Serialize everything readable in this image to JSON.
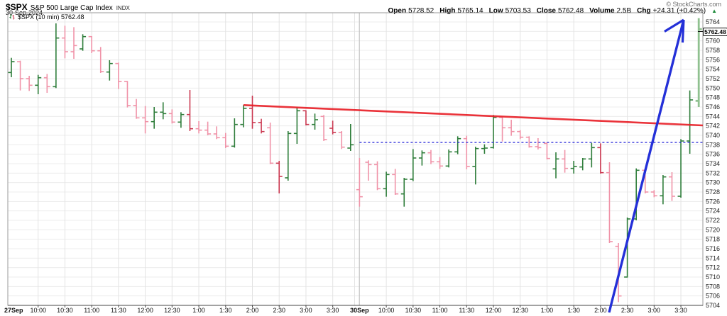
{
  "header": {
    "symbol": "$SPX",
    "index_name": "S&P 500 Large Cap Index",
    "exchange": "INDX",
    "date": "30-Sep-2024",
    "credit": "© StockCharts.com",
    "quote": [
      [
        "Open",
        "5728.52"
      ],
      [
        "High",
        "5765.14"
      ],
      [
        "Low",
        "5703.53"
      ],
      [
        "Close",
        "5762.48"
      ],
      [
        "Volume",
        "2.5B"
      ],
      [
        "Chg",
        "+24.31 (+0.42%)"
      ]
    ],
    "chg_arrow": "▲"
  },
  "chart_label": {
    "text": "$SPX (10 min) 5762.48"
  },
  "price_tag": "5762.48",
  "colors": {
    "up": "#2e7d3a",
    "up_light": "#90c190",
    "down_pink": "#f093a8",
    "down_red": "#cb3a52",
    "trendline": "#e81d25",
    "support": "#1d1dd8",
    "arrow": "#2430d8",
    "grid_h": "#ececec",
    "grid_v": "#e3e3e3",
    "session_divider": "#b8b8b8",
    "border": "#9a9a9a",
    "axis_bottom": "#444444",
    "label_text": "#222222",
    "chg_arrow_color": "#1f8c3c"
  },
  "chart_data": {
    "type": "ohlc-bars",
    "title": "$SPX (10 min)",
    "period": "10 min",
    "last_price": 5762.48,
    "y_axis": {
      "min": 5704,
      "max": 5764,
      "step": 2,
      "side": "right"
    },
    "grid": true,
    "x_labels": [
      [
        "27Sep",
        0,
        true
      ],
      [
        "10:00",
        3,
        false
      ],
      [
        "10:30",
        6,
        false
      ],
      [
        "11:00",
        9,
        false
      ],
      [
        "11:30",
        12,
        false
      ],
      [
        "12:00",
        15,
        false
      ],
      [
        "12:30",
        18,
        false
      ],
      [
        "1:00",
        21,
        false
      ],
      [
        "1:30",
        24,
        false
      ],
      [
        "2:00",
        27,
        false
      ],
      [
        "2:30",
        30,
        false
      ],
      [
        "3:00",
        33,
        false
      ],
      [
        "3:30",
        36,
        false
      ],
      [
        "30Sep",
        39,
        true
      ],
      [
        "10:00",
        42,
        false
      ],
      [
        "10:30",
        45,
        false
      ],
      [
        "11:00",
        48,
        false
      ],
      [
        "11:30",
        51,
        false
      ],
      [
        "12:00",
        54,
        false
      ],
      [
        "12:30",
        57,
        false
      ],
      [
        "1:00",
        60,
        false
      ],
      [
        "1:30",
        63,
        false
      ],
      [
        "2:00",
        66,
        false
      ],
      [
        "2:30",
        69,
        false
      ],
      [
        "3:00",
        72,
        false
      ],
      [
        "3:30",
        75,
        false
      ]
    ],
    "sessions": [
      {
        "date": "27Sep",
        "bars": [
          [
            "9:30",
            5753.3,
            5756.4,
            5752.3,
            5755.6,
            "g"
          ],
          [
            "9:40",
            5755.6,
            5755.8,
            5749.5,
            5752.0,
            "p"
          ],
          [
            "9:50",
            5752.0,
            5752.6,
            5749.4,
            5750.6,
            "p"
          ],
          [
            "10:00",
            5750.6,
            5752.8,
            5748.7,
            5752.2,
            "g"
          ],
          [
            "10:10",
            5752.2,
            5753.0,
            5749.0,
            5750.3,
            "p"
          ],
          [
            "10:20",
            5750.3,
            5763.7,
            5750.0,
            5760.6,
            "g"
          ],
          [
            "10:30",
            5760.6,
            5763.2,
            5756.3,
            5757.7,
            "p"
          ],
          [
            "10:40",
            5757.7,
            5762.9,
            5756.2,
            5759.0,
            "p"
          ],
          [
            "10:50",
            5758.3,
            5761.4,
            5757.9,
            5760.9,
            "g"
          ],
          [
            "11:00",
            5760.9,
            5761.0,
            5757.4,
            5757.9,
            "p"
          ],
          [
            "11:10",
            5757.9,
            5758.7,
            5753.2,
            5753.5,
            "p"
          ],
          [
            "11:20",
            5753.4,
            5755.9,
            5751.6,
            5755.2,
            "g"
          ],
          [
            "11:30",
            5755.2,
            5755.4,
            5749.8,
            5751.4,
            "p"
          ],
          [
            "11:40",
            5751.4,
            5751.5,
            5745.9,
            5746.3,
            "p"
          ],
          [
            "11:50",
            5746.3,
            5747.7,
            5743.5,
            5743.7,
            "p"
          ],
          [
            "12:00",
            5743.7,
            5746.2,
            5740.4,
            5742.9,
            "p"
          ],
          [
            "12:10",
            5742.9,
            5746.0,
            5741.4,
            5744.9,
            "g"
          ],
          [
            "12:20",
            5744.9,
            5747.0,
            5743.4,
            5744.6,
            "g"
          ],
          [
            "12:30",
            5744.6,
            5745.5,
            5742.5,
            5742.8,
            "p"
          ],
          [
            "12:40",
            5742.8,
            5744.9,
            5741.6,
            5744.4,
            "g"
          ],
          [
            "12:50",
            5744.4,
            5749.6,
            5740.9,
            5741.4,
            "r"
          ],
          [
            "1:00",
            5741.4,
            5743.0,
            5740.4,
            5741.1,
            "p"
          ],
          [
            "1:10",
            5741.1,
            5742.9,
            5740.0,
            5740.3,
            "p"
          ],
          [
            "1:20",
            5740.3,
            5741.9,
            5739.2,
            5739.5,
            "p"
          ],
          [
            "1:30",
            5739.5,
            5740.5,
            5737.3,
            5737.7,
            "p"
          ],
          [
            "1:40",
            5737.7,
            5743.6,
            5737.4,
            5742.3,
            "g"
          ],
          [
            "1:50",
            5742.3,
            5746.4,
            5741.7,
            5745.7,
            "g"
          ],
          [
            "2:00",
            5745.7,
            5748.4,
            5741.4,
            5742.7,
            "r"
          ],
          [
            "2:10",
            5742.7,
            5743.5,
            5740.4,
            5740.8,
            "r"
          ],
          [
            "2:20",
            5741.6,
            5742.7,
            5733.9,
            5734.1,
            "p"
          ],
          [
            "2:30",
            5734.1,
            5734.6,
            5727.7,
            5731.3,
            "r"
          ],
          [
            "2:40",
            5731.0,
            5740.9,
            5730.4,
            5740.4,
            "g"
          ],
          [
            "2:50",
            5740.4,
            5745.9,
            5738.2,
            5745.2,
            "g"
          ],
          [
            "3:00",
            5745.2,
            5745.3,
            5742.1,
            5742.3,
            "r"
          ],
          [
            "3:10",
            5742.3,
            5744.6,
            5741.2,
            5743.3,
            "g"
          ],
          [
            "3:20",
            5744.0,
            5744.3,
            5738.8,
            5739.1,
            "p"
          ],
          [
            "3:30",
            5741.5,
            5743.1,
            5740.2,
            5740.6,
            "r"
          ],
          [
            "3:40",
            5740.6,
            5740.9,
            5737.1,
            5737.5,
            "p"
          ],
          [
            "3:50",
            5737.3,
            5742.4,
            5736.7,
            5738.0,
            "g"
          ]
        ]
      },
      {
        "date": "30Sep",
        "bars": [
          [
            "9:30",
            5728.5,
            5735.2,
            5724.9,
            5727.0,
            "p"
          ],
          [
            "9:40",
            5734.3,
            5734.7,
            5730.4,
            5733.8,
            "p"
          ],
          [
            "9:50",
            5733.8,
            5734.5,
            5728.4,
            5728.7,
            "p"
          ],
          [
            "10:00",
            5728.7,
            5732.3,
            5727.0,
            5731.7,
            "g"
          ],
          [
            "10:10",
            5731.7,
            5732.9,
            5727.4,
            5727.6,
            "p"
          ],
          [
            "10:20",
            5727.6,
            5731.0,
            5724.9,
            5730.7,
            "g"
          ],
          [
            "10:30",
            5730.7,
            5737.1,
            5730.3,
            5735.2,
            "g"
          ],
          [
            "10:40",
            5735.2,
            5736.8,
            5733.6,
            5736.3,
            "g"
          ],
          [
            "10:50",
            5736.3,
            5736.9,
            5733.9,
            5734.4,
            "p"
          ],
          [
            "11:00",
            5734.4,
            5735.4,
            5732.9,
            5733.5,
            "p"
          ],
          [
            "11:10",
            5733.5,
            5737.0,
            5733.2,
            5736.5,
            "g"
          ],
          [
            "11:20",
            5736.5,
            5739.8,
            5736.0,
            5739.3,
            "g"
          ],
          [
            "11:30",
            5739.3,
            5739.9,
            5732.8,
            5733.4,
            "p"
          ],
          [
            "11:40",
            5733.4,
            5737.6,
            5729.6,
            5737.2,
            "g"
          ],
          [
            "11:50",
            5737.2,
            5738.1,
            5736.1,
            5737.3,
            "g"
          ],
          [
            "12:00",
            5737.4,
            5744.3,
            5737.2,
            5743.8,
            "g"
          ],
          [
            "12:10",
            5743.8,
            5743.9,
            5738.7,
            5741.6,
            "p"
          ],
          [
            "12:20",
            5741.6,
            5743.3,
            5739.9,
            5740.8,
            "p"
          ],
          [
            "12:30",
            5740.8,
            5741.1,
            5739.2,
            5739.6,
            "p"
          ],
          [
            "12:40",
            5739.6,
            5739.8,
            5737.4,
            5737.6,
            "p"
          ],
          [
            "12:50",
            5737.6,
            5739.4,
            5737.0,
            5737.4,
            "p"
          ],
          [
            "1:00",
            5738.3,
            5738.5,
            5734.9,
            5735.1,
            "p"
          ],
          [
            "1:10",
            5732.9,
            5736.4,
            5730.9,
            5735.0,
            "g"
          ],
          [
            "1:20",
            5735.0,
            5736.9,
            5732.1,
            5733.0,
            "p"
          ],
          [
            "1:30",
            5733.0,
            5734.6,
            5731.9,
            5733.4,
            "g"
          ],
          [
            "1:40",
            5733.3,
            5735.2,
            5732.6,
            5735.0,
            "g"
          ],
          [
            "1:50",
            5735.0,
            5738.4,
            5733.2,
            5737.4,
            "g"
          ],
          [
            "2:00",
            5737.4,
            5738.3,
            5731.9,
            5732.1,
            "r"
          ],
          [
            "2:10",
            5732.1,
            5734.3,
            5717.2,
            5717.5,
            "p"
          ],
          [
            "2:20",
            5716.5,
            5717.2,
            5704.7,
            5706.0,
            "p"
          ],
          [
            "2:30",
            5710.0,
            5722.6,
            5709.9,
            5722.3,
            "g"
          ],
          [
            "2:40",
            5722.3,
            5733.0,
            5722.0,
            5732.6,
            "g"
          ],
          [
            "2:50",
            5732.6,
            5733.1,
            5727.7,
            5728.0,
            "p"
          ],
          [
            "3:00",
            5728.0,
            5728.4,
            5726.9,
            5727.2,
            "p"
          ],
          [
            "3:10",
            5727.2,
            5731.6,
            5725.4,
            5731.2,
            "g"
          ],
          [
            "3:20",
            5731.2,
            5732.2,
            5726.1,
            5727.1,
            "p"
          ],
          [
            "3:30",
            5727.1,
            5739.2,
            5726.8,
            5738.8,
            "g"
          ],
          [
            "3:40",
            5738.8,
            5749.5,
            5736.1,
            5747.5,
            "g"
          ],
          [
            "3:50",
            5747.3,
            5764.8,
            5746.0,
            5762.48,
            "G",
            true
          ]
        ]
      }
    ],
    "annotations": {
      "trendline": {
        "from": {
          "slot": 26,
          "price": 5746.4
        },
        "to": {
          "slot": 77.45,
          "price": 5742.1
        }
      },
      "support_line": {
        "price": 5738.5,
        "from_slot": 39.0,
        "to_slot": 77.45,
        "style": "dashed"
      },
      "arrow": {
        "from": {
          "slot": 66.96,
          "price": 5702.5
        },
        "to": {
          "slot": 75.31,
          "price": 5764.45
        }
      }
    }
  }
}
